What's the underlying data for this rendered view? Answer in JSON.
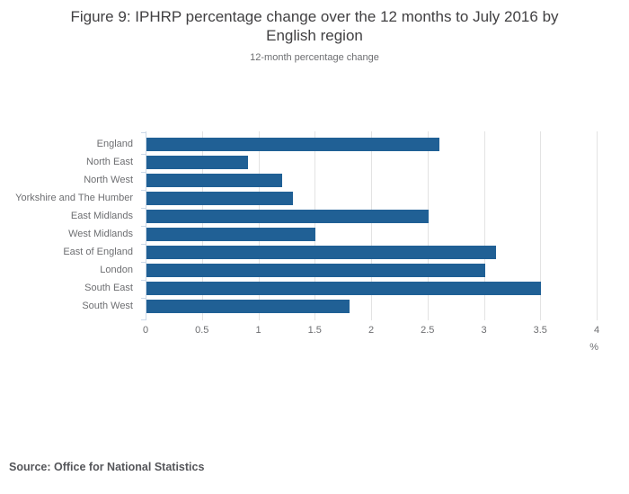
{
  "header": {
    "title_line1": "Figure 9: IPHRP percentage change over the 12 months to July 2016 by",
    "title_line2": "English region",
    "subtitle": "12-month percentage change"
  },
  "chart_data": {
    "type": "bar",
    "orientation": "horizontal",
    "title": "Figure 9: IPHRP percentage change over the 12 months to July 2016 by English region",
    "subtitle": "12-month percentage change",
    "categories": [
      "England",
      "North East",
      "North West",
      "Yorkshire and The Humber",
      "East Midlands",
      "West Midlands",
      "East of England",
      "London",
      "South East",
      "South West"
    ],
    "values": [
      2.6,
      0.9,
      1.2,
      1.3,
      2.5,
      1.5,
      3.1,
      3.0,
      3.5,
      1.8
    ],
    "xlabel": "%",
    "xlim": [
      0,
      4
    ],
    "xticks": [
      0,
      0.5,
      1,
      1.5,
      2,
      2.5,
      3,
      3.5,
      4
    ],
    "grid": "vertical",
    "legend": "none",
    "bar_color": "#206095",
    "gridline_color": "#e3e3e3",
    "axis_color": "#ccd9e8"
  },
  "footer": {
    "source": "Source: Office for National Statistics"
  }
}
